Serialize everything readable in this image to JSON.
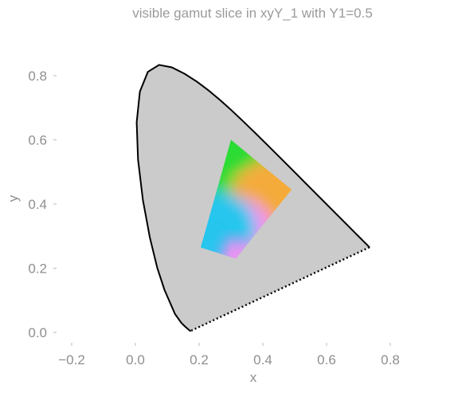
{
  "chart_data": {
    "type": "area",
    "title": "visible gamut slice in xyY_1 with Y1=0.5",
    "xlabel": "x",
    "ylabel": "y",
    "xlim": [
      -0.26,
      0.96
    ],
    "ylim": [
      -0.03,
      0.88
    ],
    "xticks": [
      -0.2,
      0.0,
      0.2,
      0.4,
      0.6,
      0.8
    ],
    "yticks": [
      0.0,
      0.2,
      0.4,
      0.6,
      0.8
    ],
    "xtick_labels": [
      "−0.2",
      "0.0",
      "0.2",
      "0.4",
      "0.6",
      "0.8"
    ],
    "ytick_labels": [
      "0.0",
      "0.2",
      "0.4",
      "0.6",
      "0.8"
    ],
    "grid": false,
    "spectral_locus": [
      [
        0.1741,
        0.005
      ],
      [
        0.1738,
        0.0049
      ],
      [
        0.1733,
        0.0048
      ],
      [
        0.1726,
        0.0048
      ],
      [
        0.1714,
        0.0051
      ],
      [
        0.1689,
        0.0069
      ],
      [
        0.1644,
        0.0109
      ],
      [
        0.1566,
        0.0177
      ],
      [
        0.144,
        0.0297
      ],
      [
        0.1241,
        0.0578
      ],
      [
        0.0913,
        0.1327
      ],
      [
        0.0687,
        0.2007
      ],
      [
        0.0454,
        0.295
      ],
      [
        0.0235,
        0.4127
      ],
      [
        0.0082,
        0.5384
      ],
      [
        0.0039,
        0.6548
      ],
      [
        0.0139,
        0.7502
      ],
      [
        0.0389,
        0.812
      ],
      [
        0.0743,
        0.8338
      ],
      [
        0.1142,
        0.8262
      ],
      [
        0.1547,
        0.8059
      ],
      [
        0.1929,
        0.7816
      ],
      [
        0.2296,
        0.7543
      ],
      [
        0.2658,
        0.7243
      ],
      [
        0.3016,
        0.6923
      ],
      [
        0.3373,
        0.6589
      ],
      [
        0.3731,
        0.6245
      ],
      [
        0.4087,
        0.5896
      ],
      [
        0.4441,
        0.5547
      ],
      [
        0.4788,
        0.5202
      ],
      [
        0.5125,
        0.4866
      ],
      [
        0.5448,
        0.4544
      ],
      [
        0.5752,
        0.4242
      ],
      [
        0.6029,
        0.3965
      ],
      [
        0.627,
        0.3725
      ],
      [
        0.6482,
        0.3514
      ],
      [
        0.6658,
        0.334
      ],
      [
        0.6801,
        0.3197
      ],
      [
        0.6915,
        0.3083
      ],
      [
        0.7006,
        0.2993
      ],
      [
        0.7079,
        0.292
      ],
      [
        0.714,
        0.2859
      ],
      [
        0.719,
        0.2809
      ],
      [
        0.723,
        0.277
      ],
      [
        0.726,
        0.274
      ],
      [
        0.7283,
        0.2717
      ],
      [
        0.73,
        0.27
      ],
      [
        0.7311,
        0.2689
      ],
      [
        0.732,
        0.268
      ],
      [
        0.7327,
        0.2673
      ],
      [
        0.7334,
        0.2666
      ],
      [
        0.734,
        0.266
      ],
      [
        0.7344,
        0.2656
      ],
      [
        0.7346,
        0.2654
      ],
      [
        0.7347,
        0.2653
      ]
    ],
    "purple_line": [
      [
        0.7347,
        0.2653
      ],
      [
        0.1741,
        0.005
      ]
    ],
    "gamut_polygon": [
      {
        "name": "green",
        "x": 0.3,
        "y": 0.6,
        "color": "#2bdc36"
      },
      {
        "name": "orange",
        "x": 0.49,
        "y": 0.445,
        "color": "#f4ab3a"
      },
      {
        "name": "pink",
        "x": 0.315,
        "y": 0.23,
        "color": "#f58ff2"
      },
      {
        "name": "cyan",
        "x": 0.205,
        "y": 0.265,
        "color": "#27c6ee"
      }
    ],
    "colors": {
      "locus_fill": "#cbcbcb",
      "locus_stroke": "#000000",
      "title": "#9a9a9a",
      "ticks": "#8f8f8f"
    }
  }
}
